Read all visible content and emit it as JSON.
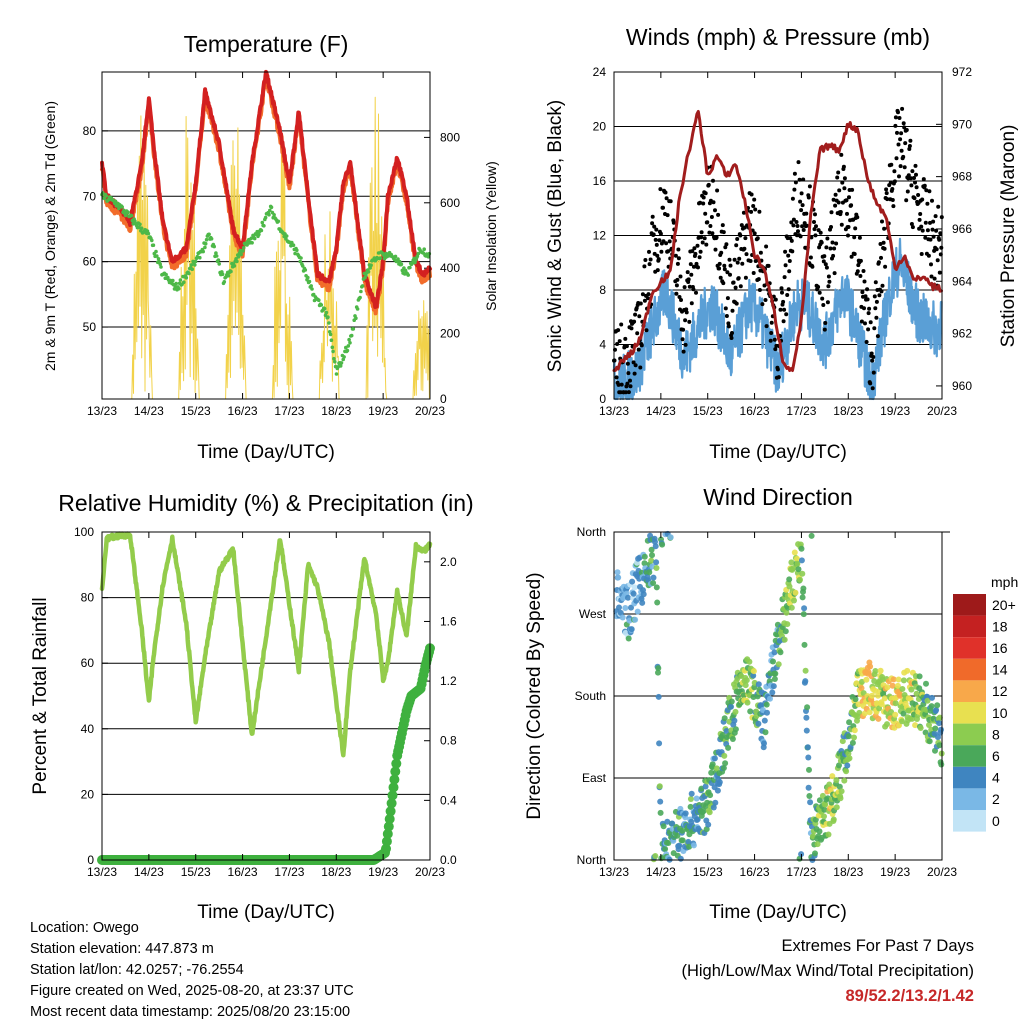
{
  "colors": {
    "temp2m": "#d32020",
    "temp9m": "#f26c2a",
    "dewpoint": "#4db848",
    "solar": "#f2d24a",
    "sonic": "#5a9fd6",
    "gust": "#000000",
    "pressure": "#a11d1d",
    "rh": "#93cc4b",
    "rain": "#3fb13f"
  },
  "x_ticks": [
    "13/23",
    "14/23",
    "15/23",
    "16/23",
    "17/23",
    "18/23",
    "19/23",
    "20/23"
  ],
  "panels": {
    "temperature": {
      "title": "Temperature (F)",
      "xlabel": "Time (Day/UTC)",
      "ylabel_left": "2m & 9m T (Red, Orange) & 2m Td (Green)",
      "ylabel_right": "Solar Insolation (Yellow)",
      "yticks_left": [
        "50",
        "60",
        "70",
        "80"
      ],
      "yticks_right": [
        "0",
        "200",
        "400",
        "600",
        "800"
      ]
    },
    "winds": {
      "title": "Winds (mph) & Pressure (mb)",
      "xlabel": "Time (Day/UTC)",
      "ylabel_left": "Sonic Wind & Gust (Blue, Black)",
      "ylabel_right": "Station Pressure (Maroon)",
      "yticks_left": [
        "0",
        "4",
        "8",
        "12",
        "16",
        "20",
        "24"
      ],
      "yticks_right": [
        "960",
        "962",
        "964",
        "966",
        "968",
        "970",
        "972"
      ]
    },
    "humidity": {
      "title": "Relative Humidity (%) & Precipitation (in)",
      "xlabel": "Time (Day/UTC)",
      "ylabel_left": "Percent & Total Rainfall",
      "yticks_left": [
        "0",
        "20",
        "40",
        "60",
        "80",
        "100"
      ],
      "yticks_right": [
        "0.0",
        "0.4",
        "0.8",
        "1.2",
        "1.6",
        "2.0"
      ]
    },
    "direction": {
      "title": "Wind Direction",
      "xlabel": "Time (Day/UTC)",
      "ylabel_left": "Direction (Colored By Speed)",
      "yticks_left": [
        "North",
        "East",
        "South",
        "West",
        "North"
      ],
      "legend_title": "mph",
      "legend_labels": [
        "20+",
        "18",
        "16",
        "14",
        "12",
        "10",
        "8",
        "6",
        "4",
        "2",
        "0"
      ],
      "legend_colors": [
        "#9e1a1a",
        "#c42121",
        "#e0312a",
        "#f06a2a",
        "#f8a84a",
        "#e8e050",
        "#8ccc50",
        "#4aa85a",
        "#3f85c0",
        "#7ab8e6",
        "#c2e4f6"
      ]
    }
  },
  "footer": {
    "location": "Location: Owego",
    "elevation": "Station elevation: 447.873 m",
    "latlon": "Station lat/lon: 42.0257; -76.2554",
    "created": "Figure created on Wed, 2025-08-20, at 23:37 UTC",
    "timestamp": "Most recent data timestamp: 2025/08/20 23:15:00"
  },
  "extremes": {
    "title": "Extremes For Past 7 Days",
    "subtitle": "(High/Low/Max Wind/Total Precipitation)",
    "high": "89",
    "low": "52.2",
    "max_wind": "13.2",
    "precip": "1.42"
  },
  "chart_data": [
    {
      "type": "line",
      "title": "Temperature (F)",
      "xlabel": "Time (Day/UTC)",
      "ylabel": "2m & 9m T (Red, Orange) & 2m Td (Green)",
      "y2label": "Solar Insolation (Yellow)",
      "xlim": [
        0,
        7
      ],
      "ylim": [
        39,
        89
      ],
      "y2lim": [
        0,
        1000
      ],
      "series": [
        {
          "axis": "left",
          "x": [
            0,
            0.1,
            0.4,
            0.6,
            0.85,
            1.0,
            1.1,
            1.3,
            1.5,
            1.8,
            2.0,
            2.2,
            2.5,
            2.8,
            3.0,
            3.2,
            3.5,
            3.8,
            4.0,
            4.2,
            4.4,
            4.6,
            4.85,
            5.0,
            5.15,
            5.3,
            5.6,
            5.85,
            6.0,
            6.1,
            6.3,
            6.5,
            6.7,
            6.85,
            7.0
          ],
          "y": [
            75,
            70,
            68,
            66,
            75,
            85,
            78,
            66,
            60,
            62,
            72,
            86,
            78,
            65,
            62,
            75,
            89,
            80,
            72,
            83,
            70,
            58,
            57,
            62,
            72,
            75,
            58,
            53,
            60,
            70,
            76,
            70,
            60,
            58,
            59
          ]
        },
        {
          "axis": "left",
          "x": [
            0,
            0.3,
            0.7,
            1.0,
            1.3,
            1.6,
            2.0,
            2.3,
            2.6,
            3.0,
            3.3,
            3.6,
            3.9,
            4.2,
            4.5,
            4.8,
            5.0,
            5.3,
            5.6,
            5.9,
            6.2,
            6.5,
            6.8,
            7.0
          ],
          "y": [
            70,
            69,
            66,
            64,
            58,
            56,
            60,
            64,
            57,
            62,
            64,
            68,
            64,
            61,
            55,
            52,
            43,
            48,
            58,
            61,
            61,
            58,
            62,
            61
          ]
        },
        {
          "axis": "right",
          "x": [
            0.6,
            0.85,
            1.1,
            1.6,
            1.85,
            2.1,
            2.6,
            2.85,
            3.1,
            3.6,
            3.85,
            4.1,
            4.6,
            4.85,
            5.1,
            5.6,
            5.85,
            6.1,
            6.6,
            6.85
          ],
          "y": [
            0,
            980,
            0,
            0,
            960,
            0,
            0,
            920,
            0,
            0,
            870,
            0,
            0,
            780,
            0,
            0,
            1000,
            0,
            0,
            380
          ]
        }
      ]
    },
    {
      "type": "line",
      "title": "Winds (mph) & Pressure (mb)",
      "xlabel": "Time (Day/UTC)",
      "ylabel": "Sonic Wind & Gust (Blue, Black)",
      "y2label": "Station Pressure (Maroon)",
      "xlim": [
        0,
        7
      ],
      "ylim": [
        0,
        24
      ],
      "y2lim": [
        959.5,
        972
      ],
      "series": [
        {
          "axis": "right",
          "x": [
            0,
            0.2,
            0.4,
            0.6,
            0.8,
            1.0,
            1.2,
            1.4,
            1.6,
            1.8,
            2.0,
            2.2,
            2.4,
            2.6,
            2.8,
            3.0,
            3.2,
            3.4,
            3.6,
            3.8,
            4.0,
            4.2,
            4.4,
            4.6,
            4.8,
            5.0,
            5.2,
            5.4,
            5.6,
            5.8,
            6.0,
            6.2,
            6.4,
            6.6,
            6.8,
            7.0
          ],
          "y": [
            960.5,
            961.0,
            961.3,
            962.0,
            963.5,
            964.0,
            964.3,
            967.2,
            969.0,
            970.5,
            968.0,
            968.8,
            968.0,
            968.5,
            967.0,
            965.0,
            964.5,
            963.0,
            961.0,
            960.5,
            962.5,
            966.5,
            969.0,
            969.2,
            969.0,
            970.0,
            969.8,
            968.0,
            967.0,
            966.5,
            964.5,
            965.0,
            964.0,
            964.2,
            963.8,
            963.7
          ]
        },
        {
          "axis": "left",
          "x": [
            0,
            0.5,
            0.9,
            1.1,
            1.5,
            1.9,
            2.1,
            2.5,
            2.9,
            3.1,
            3.5,
            3.9,
            4.1,
            4.5,
            4.9,
            5.1,
            5.5,
            5.9,
            6.1,
            6.5,
            6.9,
            7.0
          ],
          "y": [
            1,
            2,
            6,
            8,
            3,
            6,
            7,
            3,
            7,
            6,
            2,
            7,
            7,
            4,
            8,
            6,
            1,
            8,
            10,
            6,
            5,
            6
          ]
        },
        {
          "axis": "left",
          "x": [
            0,
            0.5,
            0.9,
            1.1,
            1.5,
            1.9,
            2.1,
            2.5,
            2.9,
            3.1,
            3.5,
            3.9,
            4.1,
            4.5,
            4.9,
            5.1,
            5.5,
            5.9,
            6.1,
            6.5,
            6.9,
            7.0
          ],
          "y": [
            2,
            4,
            12,
            14,
            6,
            13,
            15,
            7,
            13,
            11,
            4,
            15,
            14,
            8,
            16,
            13,
            3,
            16,
            19,
            14,
            11,
            12
          ]
        }
      ]
    },
    {
      "type": "line",
      "title": "Relative Humidity (%) & Precipitation (in)",
      "xlabel": "Time (Day/UTC)",
      "ylabel": "Percent & Total Rainfall",
      "xlim": [
        0,
        7
      ],
      "ylim": [
        0,
        100
      ],
      "y2lim": [
        0,
        2.2
      ],
      "series": [
        {
          "axis": "left",
          "x": [
            0,
            0.1,
            0.4,
            0.6,
            0.85,
            1.0,
            1.1,
            1.3,
            1.5,
            1.8,
            2.0,
            2.2,
            2.5,
            2.8,
            3.0,
            3.2,
            3.5,
            3.8,
            4.0,
            4.2,
            4.4,
            4.6,
            4.85,
            5.0,
            5.15,
            5.3,
            5.6,
            5.85,
            6.0,
            6.1,
            6.3,
            6.5,
            6.7,
            6.85,
            7.0
          ],
          "y": [
            82,
            98,
            99,
            99,
            70,
            48,
            62,
            84,
            98,
            72,
            42,
            62,
            88,
            95,
            66,
            38,
            68,
            98,
            78,
            58,
            90,
            83,
            66,
            48,
            32,
            58,
            92,
            75,
            55,
            60,
            82,
            68,
            96,
            94,
            96
          ]
        },
        {
          "axis": "right",
          "x": [
            0,
            5.8,
            6.05,
            6.15,
            6.3,
            6.5,
            6.6,
            6.8,
            6.9,
            7.0
          ],
          "y": [
            0,
            0,
            0.05,
            0.3,
            0.7,
            1.0,
            1.1,
            1.15,
            1.3,
            1.42
          ]
        }
      ]
    },
    {
      "type": "scatter",
      "title": "Wind Direction",
      "xlabel": "Time (Day/UTC)",
      "ylabel": "Direction (Colored By Speed)",
      "xlim": [
        0,
        7
      ],
      "ylim": [
        0,
        360
      ],
      "series": [
        {
          "name": "direction",
          "x": [
            0.1,
            0.3,
            0.5,
            0.7,
            0.9,
            1.0,
            1.2,
            1.4,
            1.6,
            1.8,
            2.0,
            2.2,
            2.4,
            2.6,
            2.8,
            3.0,
            3.2,
            3.4,
            3.6,
            3.8,
            4.0,
            4.2,
            4.4,
            4.6,
            4.8,
            5.0,
            5.2,
            5.4,
            5.6,
            5.8,
            6.0,
            6.2,
            6.4,
            6.6,
            6.8,
            7.0
          ],
          "y": [
            290,
            270,
            300,
            320,
            340,
            10,
            20,
            30,
            40,
            50,
            60,
            100,
            140,
            170,
            200,
            180,
            150,
            210,
            260,
            300,
            340,
            20,
            40,
            60,
            90,
            130,
            180,
            190,
            180,
            175,
            170,
            180,
            175,
            170,
            150,
            130
          ],
          "speed": [
            2,
            3,
            3,
            4,
            6,
            5,
            4,
            5,
            5,
            4,
            6,
            5,
            6,
            7,
            8,
            7,
            3,
            4,
            6,
            9,
            6,
            5,
            8,
            9,
            7,
            6,
            8,
            11,
            10,
            9,
            10,
            8,
            9,
            7,
            6,
            5
          ]
        }
      ]
    }
  ]
}
